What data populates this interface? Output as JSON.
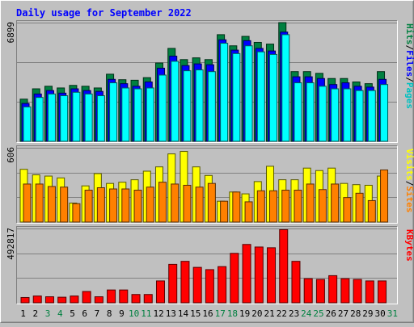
{
  "chart_data": {
    "type": "bar",
    "title": "Daily usage for September 2022",
    "days": [
      "1",
      "2",
      "3",
      "4",
      "5",
      "6",
      "7",
      "8",
      "9",
      "10",
      "11",
      "12",
      "13",
      "14",
      "15",
      "16",
      "17",
      "18",
      "19",
      "20",
      "21",
      "22",
      "23",
      "24",
      "25",
      "26",
      "27",
      "28",
      "29",
      "30",
      "31"
    ],
    "weekend_days": [
      "3",
      "4",
      "10",
      "11",
      "17",
      "18",
      "24",
      "25",
      "31"
    ],
    "panels": [
      {
        "id": "hits",
        "max_label": "6899",
        "ymax": 6899,
        "right_legend": [
          "Pages",
          "Files",
          "Hits"
        ],
        "series": [
          {
            "name": "Hits",
            "color": "#008040",
            "values": [
              2450,
              3050,
              3200,
              3100,
              3250,
              3200,
              3100,
              3900,
              3580,
              3550,
              3700,
              4550,
              5400,
              4750,
              4850,
              4750,
              6199,
              5550,
              6099,
              5750,
              5650,
              6899,
              4050,
              4050,
              3950,
              3650,
              3650,
              3450,
              3350,
              4050,
              0
            ]
          },
          {
            "name": "Files",
            "color": "#0000ff",
            "values": [
              2200,
              2750,
              2950,
              2800,
              3050,
              2950,
              2900,
              3600,
              3350,
              3200,
              3450,
              4250,
              4950,
              4400,
              4500,
              4450,
              5900,
              5300,
              5850,
              5400,
              5250,
              6349,
              3750,
              3750,
              3650,
              3300,
              3400,
              3200,
              3150,
              3600,
              0
            ]
          },
          {
            "name": "Pages",
            "color": "#00ffff",
            "values": [
              2000,
              2550,
              2750,
              2650,
              2850,
              2750,
              2650,
              3400,
              3100,
              3050,
              3100,
              3850,
              4650,
              4100,
              4150,
              4050,
              5700,
              5100,
              5550,
              5200,
              5050,
              6199,
              3400,
              3400,
              3200,
              3050,
              3050,
              2950,
              2950,
              3300,
              0
            ]
          }
        ]
      },
      {
        "id": "sites",
        "max_label": "606",
        "ymax": 606,
        "right_legend": [
          "Sites",
          "Visits"
        ],
        "series": [
          {
            "name": "Visits",
            "color": "#ffff00",
            "values": [
              430,
              385,
              375,
              360,
              155,
              295,
              395,
              315,
              325,
              345,
              415,
              450,
              556,
              576,
              450,
              380,
              170,
              245,
              230,
              330,
              455,
              345,
              345,
              440,
              420,
              440,
              315,
              305,
              300,
              375,
              0
            ]
          },
          {
            "name": "Sites",
            "color": "#ff8000",
            "values": [
              310,
              310,
              290,
              285,
              150,
              260,
              280,
              270,
              270,
              260,
              285,
              325,
              310,
              300,
              285,
              315,
              170,
              245,
              165,
              255,
              255,
              260,
              260,
              310,
              265,
              310,
              200,
              235,
              175,
              425,
              0
            ]
          }
        ]
      },
      {
        "id": "kbytes",
        "max_label": "492817",
        "ymax": 492817,
        "right_legend": [
          "KBytes"
        ],
        "series": [
          {
            "name": "KBytes",
            "color": "#ff0000",
            "values": [
              35000,
              45000,
              40000,
              37000,
              45000,
              75000,
              40000,
              85000,
              85000,
              55000,
              55000,
              145000,
              255000,
              275000,
              235000,
              220000,
              240000,
              328000,
              387000,
              370000,
              365000,
              485000,
              275000,
              160000,
              155000,
              180000,
              160000,
              155000,
              145000,
              145000,
              0
            ]
          }
        ]
      }
    ]
  }
}
